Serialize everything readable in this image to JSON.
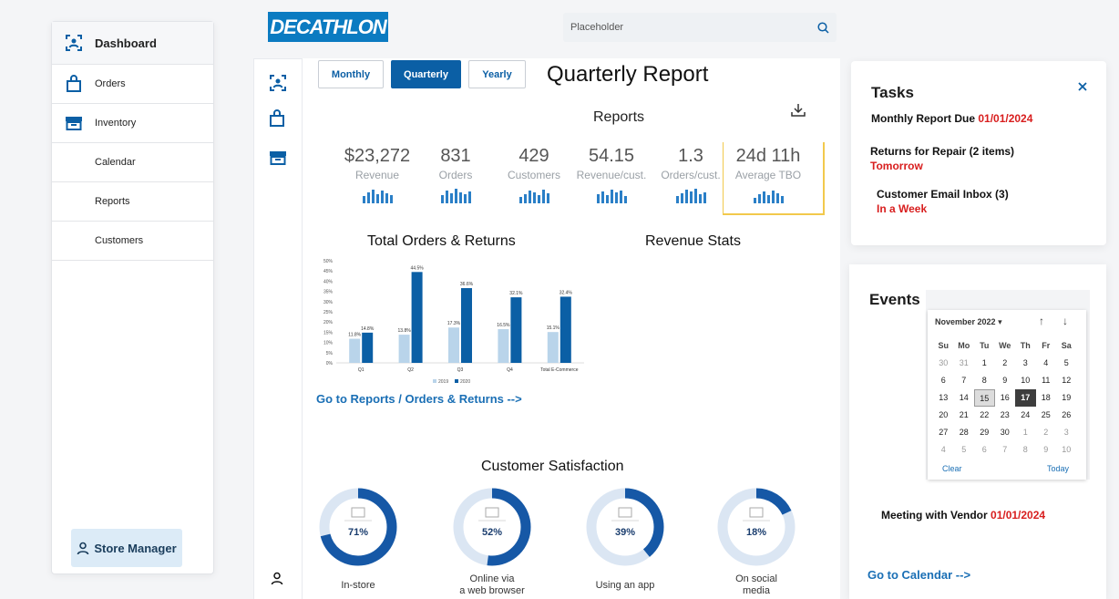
{
  "sidebar": {
    "items": [
      {
        "label": "Dashboard",
        "icon": "dashboard-icon"
      },
      {
        "label": "Orders",
        "icon": "bag-icon"
      },
      {
        "label": "Inventory",
        "icon": "inventory-icon"
      },
      {
        "label": "Calendar"
      },
      {
        "label": "Reports"
      },
      {
        "label": "Customers"
      }
    ],
    "user_label": "Store Manager"
  },
  "header": {
    "logo_text": "DECATHLON",
    "search_placeholder": "Placeholder"
  },
  "periods": {
    "monthly": "Monthly",
    "quarterly": "Quarterly",
    "yearly": "Yearly",
    "selected": "Quarterly"
  },
  "page_title": "Quarterly Report",
  "reports": {
    "title": "Reports",
    "kpis": [
      {
        "value": "$23,272",
        "label": "Revenue"
      },
      {
        "value": "831",
        "label": "Orders"
      },
      {
        "value": "429",
        "label": "Customers"
      },
      {
        "value": "54.15",
        "label": "Revenue/cust."
      },
      {
        "value": "1.3",
        "label": "Orders/cust."
      },
      {
        "value": "24d 11h",
        "label": "Average TBO"
      }
    ]
  },
  "orders_returns": {
    "title": "Total Orders & Returns",
    "link": "Go to Reports / Orders & Returns -->"
  },
  "revenue_stats": {
    "title": "Revenue Stats"
  },
  "chart_data": {
    "type": "bar",
    "categories": [
      "Q1",
      "Q2",
      "Q3",
      "Q4",
      "Total E-Commerce"
    ],
    "series": [
      {
        "name": "2019",
        "values": [
          11.8,
          13.8,
          17.3,
          16.5,
          15.1
        ],
        "color": "#b9d4ea"
      },
      {
        "name": "2020",
        "values": [
          14.8,
          44.5,
          36.6,
          32.1,
          32.4
        ],
        "color": "#0b5fa5"
      }
    ],
    "data_labels": {
      "2019": [
        "11.8%",
        "13.8%",
        "17.3%",
        "16.5%",
        "15.1%"
      ],
      "2020": [
        "14.8%",
        "44.5%",
        "36.6%",
        "32.1%",
        "32.4%"
      ]
    },
    "yticks": [
      "0%",
      "5%",
      "10%",
      "15%",
      "20%",
      "25%",
      "30%",
      "35%",
      "40%",
      "45%",
      "50%"
    ],
    "ylim": [
      0,
      50
    ],
    "legend": [
      "2019",
      "2020"
    ]
  },
  "satisfaction": {
    "title": "Customer Satisfaction",
    "items": [
      {
        "label_1": "In-store",
        "label_2": "",
        "value": "71%",
        "fraction": 0.71,
        "icon": "cart-icon"
      },
      {
        "label_1": "Online via",
        "label_2": "a web browser",
        "value": "52%",
        "fraction": 0.52,
        "icon": "monitor-icon"
      },
      {
        "label_1": "Using an app",
        "label_2": "",
        "value": "39%",
        "fraction": 0.39,
        "icon": "phone-icon"
      },
      {
        "label_1": "On social",
        "label_2": "media",
        "value": "18%",
        "fraction": 0.18,
        "icon": "thumbs-up-icon"
      }
    ]
  },
  "tasks": {
    "title": "Tasks",
    "items": [
      {
        "text": "Monthly Report Due",
        "due": "01/01/2024"
      },
      {
        "text": "Returns for Repair (2 items)",
        "due": "Tomorrow"
      },
      {
        "text": "Customer Email Inbox (3)",
        "due": "In a Week"
      }
    ]
  },
  "events": {
    "title": "Events",
    "month": "November 2022",
    "weekdays": [
      "Su",
      "Mo",
      "Tu",
      "We",
      "Th",
      "Fr",
      "Sa"
    ],
    "days": [
      "30",
      "31",
      "1",
      "2",
      "3",
      "4",
      "5",
      "6",
      "7",
      "8",
      "9",
      "10",
      "11",
      "12",
      "13",
      "14",
      "15",
      "16",
      "17",
      "18",
      "19",
      "20",
      "21",
      "22",
      "23",
      "24",
      "25",
      "26",
      "27",
      "28",
      "29",
      "30",
      "1",
      "2",
      "3",
      "4",
      "5",
      "6",
      "7",
      "8",
      "9",
      "10"
    ],
    "clear": "Clear",
    "today": "Today",
    "meeting_text": "Meeting with Vendor",
    "meeting_date": "01/01/2024",
    "calendar_link": "Go to Calendar -->"
  }
}
